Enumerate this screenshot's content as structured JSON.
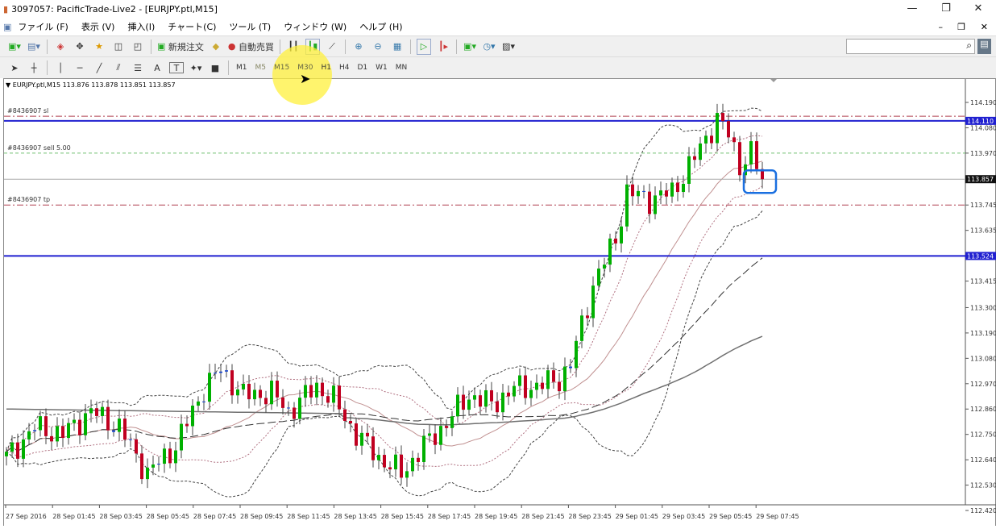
{
  "window": {
    "title": "3097057: PacificTrade-Live2 - [EURJPY.ptl,M15]",
    "minimize": "—",
    "restore": "❐",
    "close": "✕"
  },
  "menu": [
    "ファイル (F)",
    "表示 (V)",
    "挿入(I)",
    "チャート(C)",
    "ツール (T)",
    "ウィンドウ (W)",
    "ヘルプ (H)"
  ],
  "toolbar": {
    "new_order": "新規注文",
    "auto_trade": "自動売買"
  },
  "timeframes": [
    "M1",
    "M5",
    "M15",
    "M30",
    "H1",
    "H4",
    "D1",
    "W1",
    "MN"
  ],
  "drawing_tools": [
    "A",
    "T"
  ],
  "chart": {
    "header": "EURJPY.ptl,M15  113.876 113.878 113.851 113.857",
    "price_labels": [
      "114.190",
      "114.080",
      "113.970",
      "113.745",
      "113.635",
      "113.415",
      "113.300",
      "113.190",
      "113.080",
      "112.970",
      "112.860",
      "112.750",
      "112.640",
      "112.530",
      "112.420"
    ],
    "time_labels": [
      "27 Sep 2016",
      "28 Sep 01:45",
      "28 Sep 03:45",
      "28 Sep 05:45",
      "28 Sep 07:45",
      "28 Sep 09:45",
      "28 Sep 11:45",
      "28 Sep 13:45",
      "28 Sep 15:45",
      "28 Sep 17:45",
      "28 Sep 19:45",
      "28 Sep 21:45",
      "28 Sep 23:45",
      "29 Sep 01:45",
      "29 Sep 03:45",
      "29 Sep 05:45",
      "29 Sep 07:45"
    ],
    "current_price": "113.857",
    "levels": [
      {
        "label": "#8436907 sl",
        "price": 114.13,
        "color": "#b04050",
        "style": "dashdot"
      },
      {
        "label": "",
        "price": 114.11,
        "color": "#2020d0",
        "style": "solid",
        "tag": "114.110"
      },
      {
        "label": "#8436907 sell 5.00",
        "price": 113.97,
        "color": "#70c070",
        "style": "dash"
      },
      {
        "label": "#8436907 tp",
        "price": 113.745,
        "color": "#b04050",
        "style": "dashdot"
      },
      {
        "label": "",
        "price": 113.524,
        "color": "#2020d0",
        "style": "solid",
        "tag": "113.524"
      }
    ],
    "approx_close": [
      [
        0,
        112.65
      ],
      [
        5,
        112.78
      ],
      [
        10,
        112.75
      ],
      [
        15,
        112.85
      ],
      [
        20,
        112.78
      ],
      [
        25,
        112.58
      ],
      [
        30,
        112.7
      ],
      [
        35,
        112.95
      ],
      [
        38,
        113.03
      ],
      [
        42,
        112.92
      ],
      [
        47,
        112.93
      ],
      [
        50,
        112.85
      ],
      [
        55,
        112.96
      ],
      [
        58,
        112.9
      ],
      [
        62,
        112.75
      ],
      [
        66,
        112.65
      ],
      [
        70,
        112.58
      ],
      [
        74,
        112.7
      ],
      [
        78,
        112.8
      ],
      [
        82,
        112.92
      ],
      [
        86,
        112.88
      ],
      [
        90,
        112.95
      ],
      [
        94,
        112.96
      ],
      [
        98,
        112.99
      ],
      [
        100,
        113.05
      ],
      [
        104,
        113.4
      ],
      [
        108,
        113.6
      ],
      [
        110,
        113.8
      ],
      [
        114,
        113.77
      ],
      [
        118,
        113.8
      ],
      [
        122,
        113.95
      ],
      [
        126,
        114.12
      ],
      [
        128,
        114.05
      ],
      [
        130,
        113.92
      ],
      [
        132,
        113.97
      ],
      [
        134,
        113.857
      ]
    ],
    "colors": {
      "bull": "#00b000",
      "bear": "#c00020",
      "doji": "#1040d0",
      "band": "#555555",
      "ma_long": "#707070"
    }
  }
}
